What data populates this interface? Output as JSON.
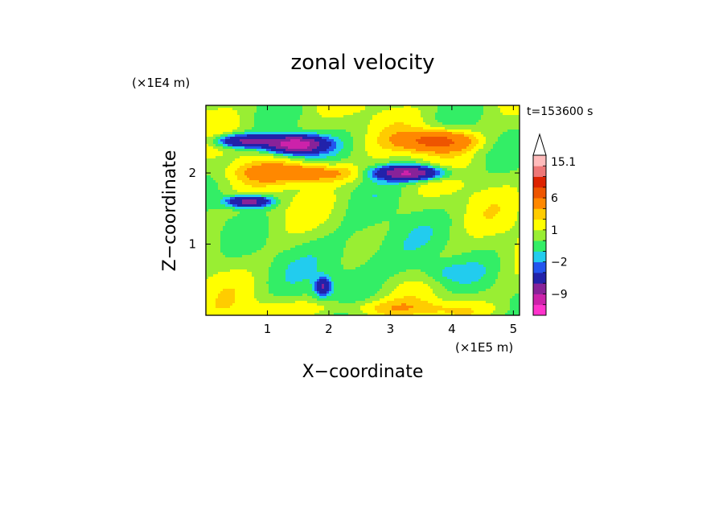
{
  "chart_data": {
    "type": "heatmap",
    "title": "zonal velocity",
    "xlabel": "X−coordinate",
    "ylabel": "Z−coordinate",
    "x_unit": "(×1E5 m)",
    "y_unit": "(×1E4 m)",
    "time_label": "t=153600 s",
    "x_ticks": [
      "1",
      "2",
      "3",
      "4",
      "5"
    ],
    "y_ticks": [
      "1",
      "2"
    ],
    "xlim": [
      0,
      5.1
    ],
    "ylim": [
      0,
      2.95
    ],
    "colorbar": {
      "labels": [
        "15.1",
        "6",
        "1",
        "−2",
        "−9"
      ],
      "levels": [
        -15,
        -12,
        -9,
        -6,
        -3,
        -2,
        -1,
        0,
        1,
        2,
        3,
        6,
        9,
        12,
        15.1
      ],
      "colors": [
        "#ff33cc",
        "#cc22aa",
        "#882299",
        "#2222aa",
        "#2255ee",
        "#22ccee",
        "#33ee66",
        "#99ee33",
        "#ffff00",
        "#ffcc00",
        "#ff8800",
        "#ee5500",
        "#dd2200",
        "#ee7777",
        "#ffbbbb"
      ]
    }
  }
}
